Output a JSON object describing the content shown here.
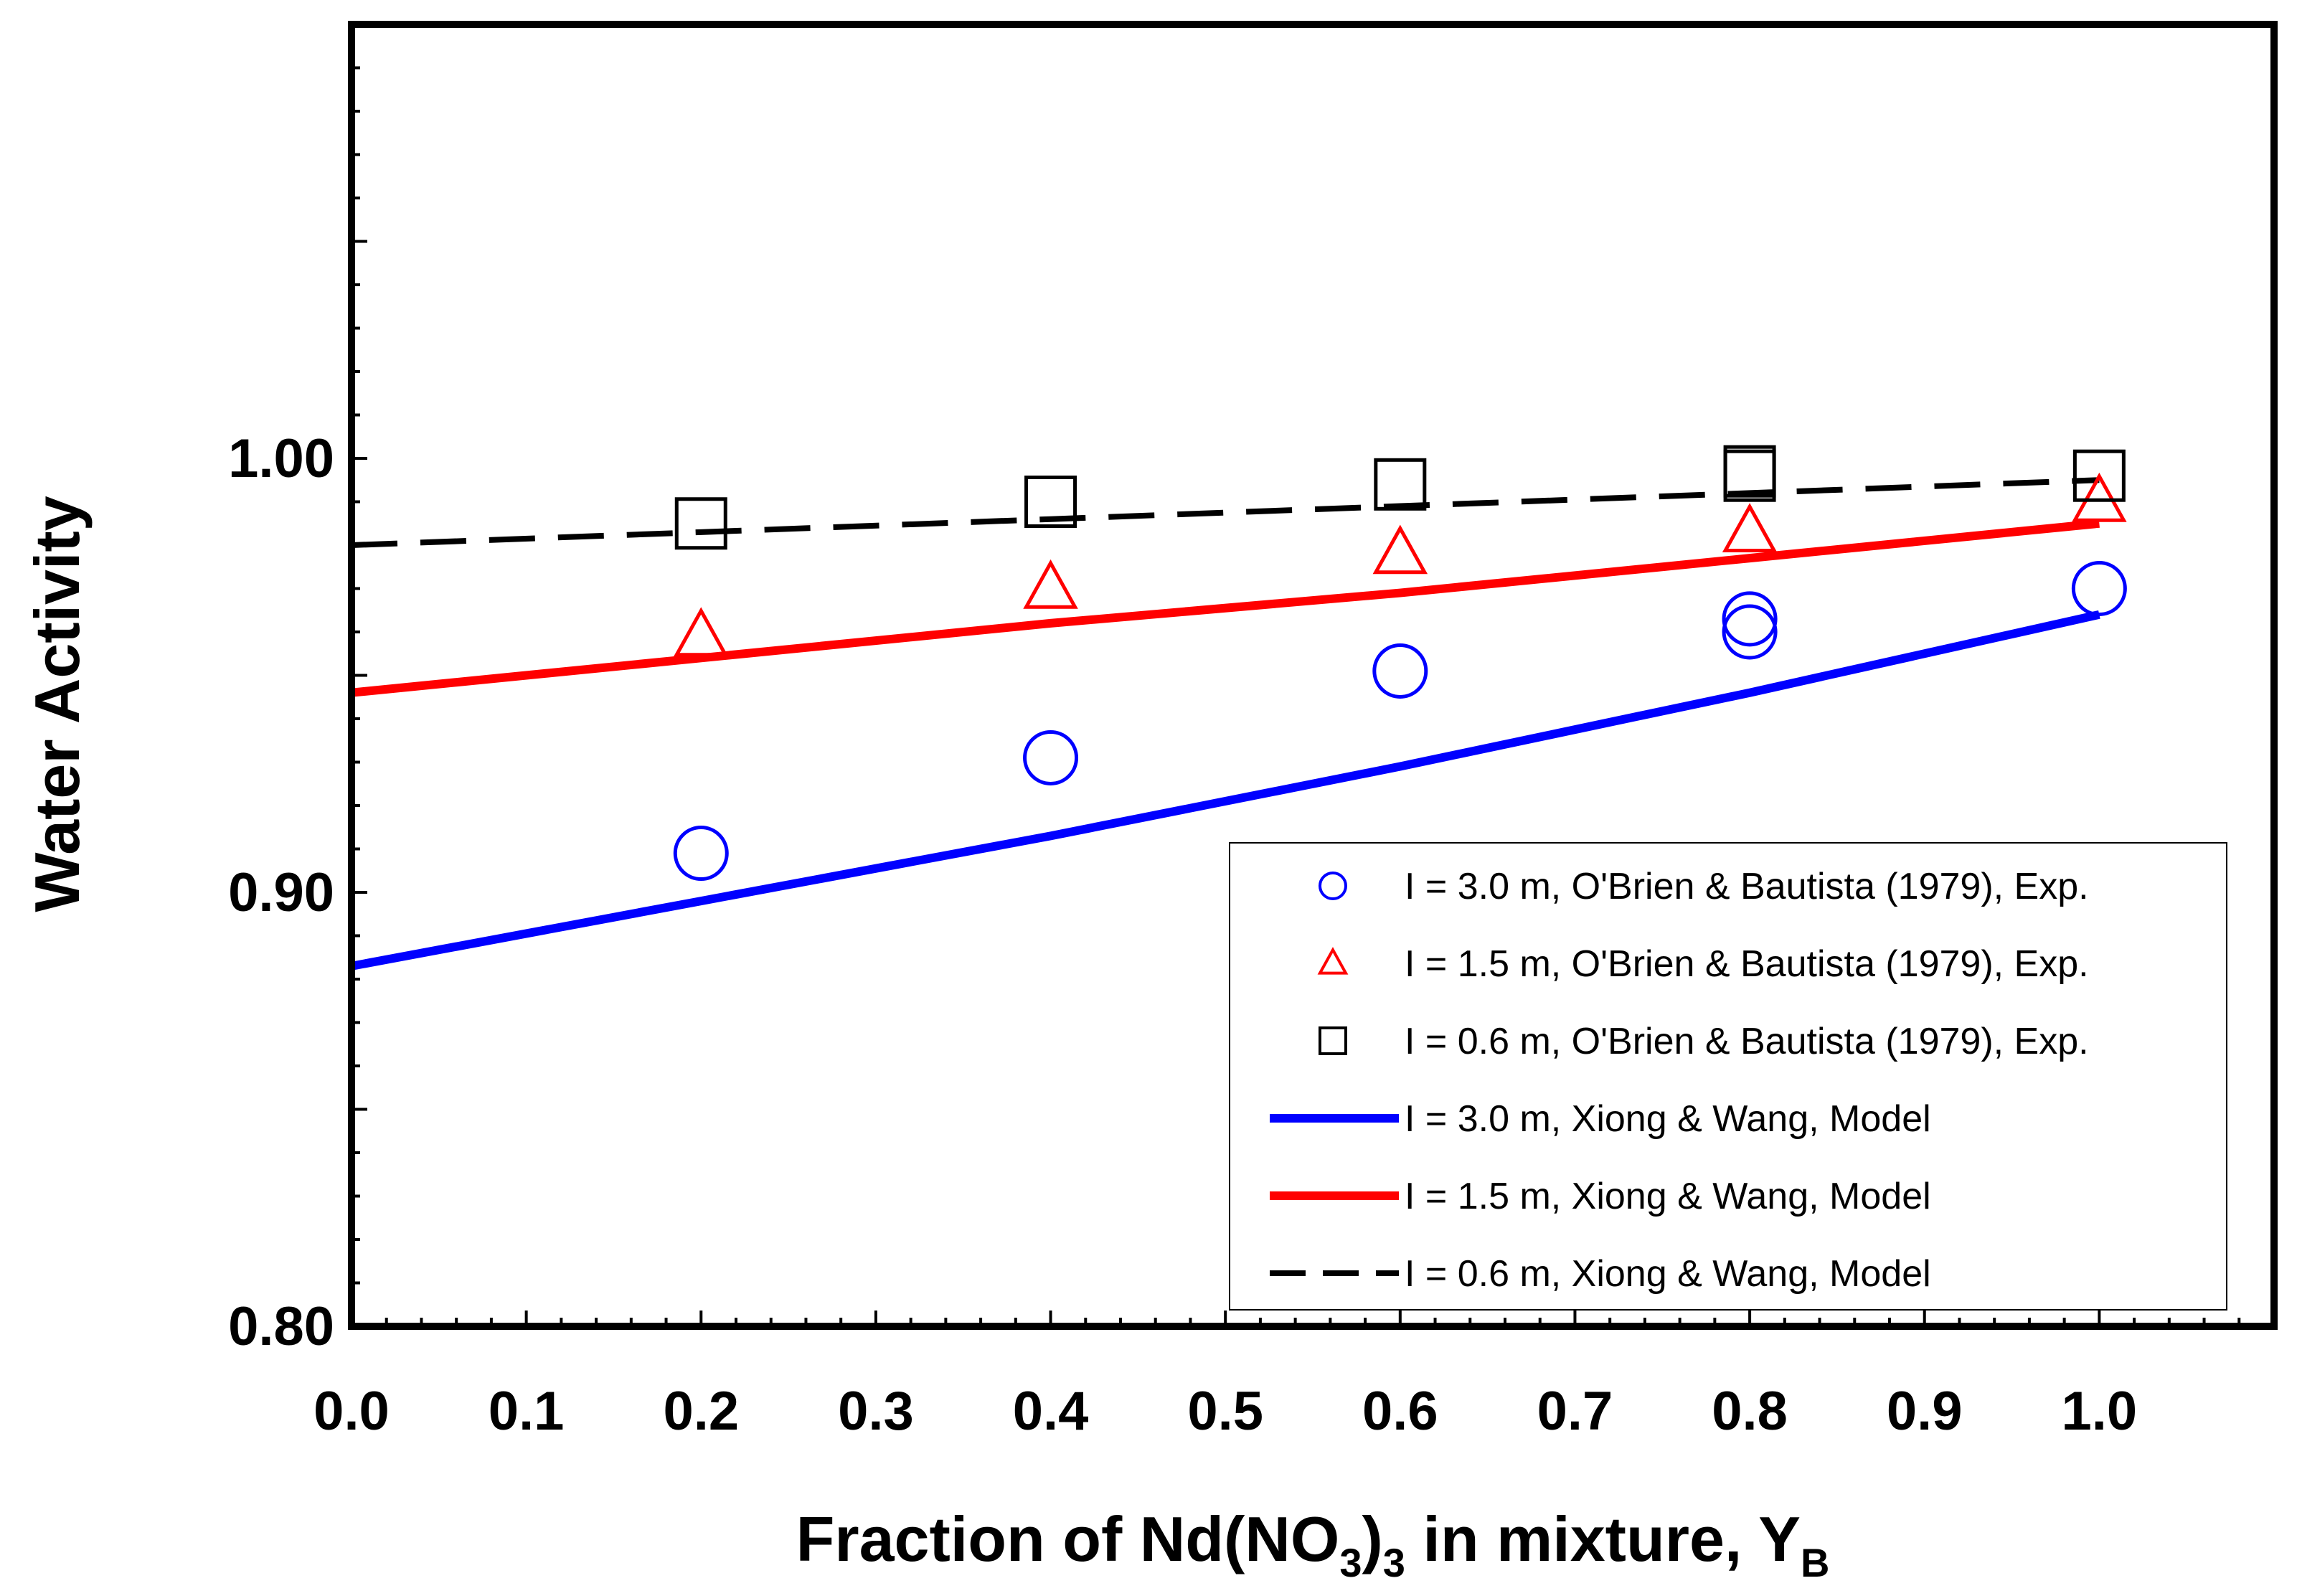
{
  "chart_data": {
    "type": "line",
    "xlabel_parts": {
      "prefix": "Fraction of Nd(NO",
      "sub1": "3",
      "mid": ")",
      "sub2": "3",
      "suffix": " in mixture, Y",
      "sub3": "B"
    },
    "ylabel": "Water Activity",
    "xlim": [
      0.0,
      1.1
    ],
    "ylim": [
      0.8,
      1.1
    ],
    "x_ticks": [
      "0.0",
      "0.1",
      "0.2",
      "0.3",
      "0.4",
      "0.5",
      "0.6",
      "0.7",
      "0.8",
      "0.9",
      "1.0"
    ],
    "y_ticks": [
      "0.80",
      "0.90",
      "1.00"
    ],
    "grid": false,
    "legend_position": "bottom-right",
    "series": [
      {
        "name": "I = 3.0 m, O'Brien & Bautista (1979), Exp.",
        "kind": "scatter",
        "marker": "circle",
        "color": "#0000ff",
        "x": [
          0.2,
          0.4,
          0.6,
          0.8,
          0.8,
          1.0
        ],
        "y": [
          0.909,
          0.931,
          0.951,
          0.96,
          0.963,
          0.97
        ]
      },
      {
        "name": "I = 1.5 m, O'Brien & Bautista (1979), Exp.",
        "kind": "scatter",
        "marker": "triangle",
        "color": "#ff0000",
        "x": [
          0.2,
          0.4,
          0.6,
          0.8,
          1.0
        ],
        "y": [
          0.959,
          0.97,
          0.978,
          0.983,
          0.99
        ]
      },
      {
        "name": "I = 0.6 m, O'Brien & Bautista (1979), Exp.",
        "kind": "scatter",
        "marker": "square",
        "color": "#000000",
        "x": [
          0.2,
          0.4,
          0.6,
          0.8,
          0.8,
          1.0
        ],
        "y": [
          0.985,
          0.99,
          0.994,
          0.996,
          0.997,
          0.996
        ]
      },
      {
        "name": "I = 3.0 m, Xiong & Wang, Model",
        "kind": "line",
        "style": "solid",
        "color": "#0000ff",
        "x": [
          0.0,
          0.2,
          0.4,
          0.6,
          0.8,
          1.0
        ],
        "y": [
          0.883,
          0.898,
          0.913,
          0.929,
          0.946,
          0.964
        ]
      },
      {
        "name": "I = 1.5 m, Xiong & Wang, Model",
        "kind": "line",
        "style": "solid",
        "color": "#ff0000",
        "x": [
          0.0,
          0.2,
          0.4,
          0.6,
          0.8,
          1.0
        ],
        "y": [
          0.946,
          0.954,
          0.962,
          0.969,
          0.977,
          0.985
        ]
      },
      {
        "name": "I = 0.6 m, Xiong & Wang, Model",
        "kind": "line",
        "style": "dashed",
        "color": "#000000",
        "x": [
          0.0,
          0.2,
          0.4,
          0.6,
          0.8,
          1.0
        ],
        "y": [
          0.98,
          0.983,
          0.986,
          0.989,
          0.992,
          0.995
        ]
      }
    ]
  }
}
